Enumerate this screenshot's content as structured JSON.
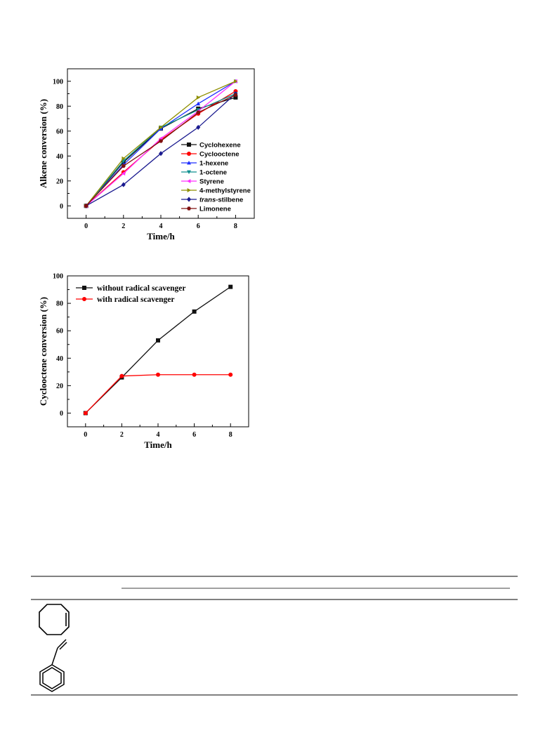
{
  "chart_data": [
    {
      "type": "line",
      "title": "",
      "xlabel": "Time/h",
      "ylabel": "Alkene conversion (%)",
      "xlim": [
        -1,
        9
      ],
      "ylim": [
        -10,
        110
      ],
      "xticks": [
        0,
        2,
        4,
        6,
        8
      ],
      "yticks": [
        0,
        20,
        40,
        60,
        80,
        100
      ],
      "legend_position": "bottom-right",
      "x": [
        0,
        2,
        4,
        6,
        8
      ],
      "series": [
        {
          "name": "Cyclohexene",
          "color": "#111111",
          "marker": "square",
          "values": [
            0,
            35,
            62,
            78,
            87
          ]
        },
        {
          "name": "Cyclooctene",
          "color": "#ff0000",
          "marker": "circle",
          "values": [
            0,
            27,
            53,
            74,
            92
          ]
        },
        {
          "name": "1-hexene",
          "color": "#1f2fff",
          "marker": "triangle-up",
          "values": [
            0,
            33,
            62,
            82,
            100
          ]
        },
        {
          "name": "1-octene",
          "color": "#0f8f8f",
          "marker": "triangle-down",
          "values": [
            0,
            36,
            63,
            77,
            90
          ]
        },
        {
          "name": "Styrene",
          "color": "#ff2fff",
          "marker": "triangle-left",
          "values": [
            0,
            26,
            54,
            76,
            100
          ]
        },
        {
          "name": "4-methylstyrene",
          "color": "#8f8f00",
          "marker": "triangle-right",
          "values": [
            0,
            38,
            63,
            87,
            100
          ]
        },
        {
          "name": "trans-stilbene",
          "color": "#1a1a8f",
          "marker": "diamond",
          "values": [
            0,
            17,
            42,
            63,
            90
          ]
        },
        {
          "name": "Limonene",
          "color": "#7f1010",
          "marker": "hexagon",
          "values": [
            0,
            32,
            52,
            75,
            89
          ]
        }
      ]
    },
    {
      "type": "line",
      "title": "",
      "xlabel": "Time/h",
      "ylabel": "Cyclooctene conversion (%)",
      "xlim": [
        -1,
        9
      ],
      "ylim": [
        -10,
        100
      ],
      "xticks": [
        0,
        2,
        4,
        6,
        8
      ],
      "yticks": [
        0,
        20,
        40,
        60,
        80,
        100
      ],
      "legend_position": "top-left",
      "x": [
        0,
        2,
        4,
        6,
        8
      ],
      "series": [
        {
          "name": "without radical scavenger",
          "color": "#111111",
          "marker": "square",
          "values": [
            0,
            26,
            53,
            74,
            92
          ]
        },
        {
          "name": "with radical scavenger",
          "color": "#ff0000",
          "marker": "circle",
          "values": [
            0,
            27,
            28,
            28,
            28
          ]
        }
      ]
    }
  ],
  "legend1_prefix": "trans",
  "legend1_suffix": "-stilbene",
  "structures": [
    {
      "name": "cyclooctene"
    },
    {
      "name": "styrene"
    }
  ]
}
